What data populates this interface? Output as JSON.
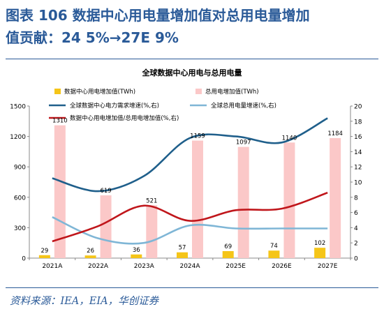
{
  "figure": {
    "title_line1": "图表 106   数据中心用电量增加值对总用电量增加",
    "title_line2": "值贡献：24 5%→27E 9%",
    "source": "资料来源：IEA，EIA，华创证券"
  },
  "chart_data": {
    "type": "bar",
    "title": "全球数据中心用电与总用电量",
    "categories": [
      "2021A",
      "2022A",
      "2023A",
      "2024A",
      "2025E",
      "2026E",
      "2027E"
    ],
    "ylim_left": [
      0,
      1500
    ],
    "yticks_left": [
      "0",
      "300",
      "600",
      "900",
      "1200",
      "1500"
    ],
    "ylim_right": [
      0,
      20
    ],
    "yticks_right": [
      "0",
      "2",
      "4",
      "6",
      "8",
      "10",
      "12",
      "14",
      "16",
      "18",
      "20"
    ],
    "grid": false,
    "legend_position": "top",
    "series": [
      {
        "name": "数据中心用电增加值(TWh)",
        "type": "bar",
        "axis": "left",
        "color": "#f5c518",
        "values": [
          29,
          26,
          36,
          57,
          69,
          74,
          102
        ],
        "labels": [
          "29",
          "26",
          "36",
          "57",
          "69",
          "74",
          "102"
        ]
      },
      {
        "name": "总用电增加值(TWh)",
        "type": "bar",
        "axis": "left",
        "color": "#fbc8c8",
        "values": [
          1310,
          619,
          521,
          1159,
          1097,
          1140,
          1184
        ],
        "labels": [
          "1310",
          "619",
          "521",
          "1159",
          "1097",
          "1140",
          "1184"
        ]
      },
      {
        "name": "全球数据中心电力需求增速(%,右)",
        "type": "line",
        "axis": "right",
        "color": "#1f5f8b",
        "values": [
          10.5,
          8.8,
          10.8,
          15.8,
          16.0,
          15.2,
          18.4
        ]
      },
      {
        "name": "全球总用电量增速(%,右)",
        "type": "line",
        "axis": "right",
        "color": "#7fb6d6",
        "values": [
          5.4,
          2.6,
          2.0,
          4.3,
          3.9,
          3.9,
          3.9
        ]
      },
      {
        "name": "数据中心用电增加值/总用电增加值(%,右)",
        "type": "line",
        "axis": "right",
        "color": "#c0161b",
        "values": [
          2.2,
          4.2,
          6.9,
          4.9,
          6.3,
          6.5,
          8.6
        ]
      }
    ]
  }
}
